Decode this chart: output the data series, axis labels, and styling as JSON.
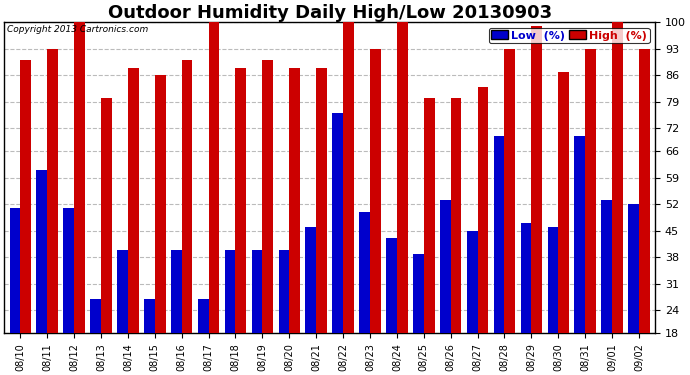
{
  "title": "Outdoor Humidity Daily High/Low 20130903",
  "copyright": "Copyright 2013 Cartronics.com",
  "dates": [
    "08/10",
    "08/11",
    "08/12",
    "08/13",
    "08/14",
    "08/15",
    "08/16",
    "08/17",
    "08/18",
    "08/19",
    "08/20",
    "08/21",
    "08/22",
    "08/23",
    "08/24",
    "08/25",
    "08/26",
    "08/27",
    "08/28",
    "08/29",
    "08/30",
    "08/31",
    "09/01",
    "09/02"
  ],
  "low_values": [
    51,
    61,
    51,
    27,
    40,
    27,
    40,
    27,
    40,
    40,
    40,
    46,
    76,
    50,
    43,
    39,
    53,
    45,
    70,
    47,
    46,
    70,
    53,
    52
  ],
  "high_values": [
    90,
    93,
    100,
    80,
    88,
    86,
    90,
    100,
    88,
    90,
    88,
    88,
    100,
    93,
    100,
    80,
    80,
    83,
    93,
    99,
    87,
    93,
    100,
    93
  ],
  "low_color": "#0000cc",
  "high_color": "#cc0000",
  "ylim_min": 18,
  "ylim_max": 100,
  "yticks": [
    18,
    24,
    31,
    38,
    45,
    52,
    59,
    66,
    72,
    79,
    86,
    93,
    100
  ],
  "background_color": "#ffffff",
  "plot_bg_color": "#ffffff",
  "grid_color": "#bbbbbb",
  "title_fontsize": 13,
  "bar_width": 0.4,
  "legend_low_label": "Low  (%)",
  "legend_high_label": "High  (%)",
  "legend_low_bg": "#0000cc",
  "legend_high_bg": "#cc0000"
}
